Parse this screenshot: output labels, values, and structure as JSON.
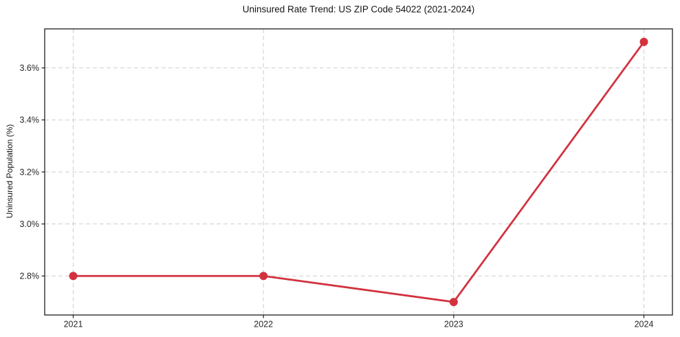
{
  "page": {
    "background": "#ffffff"
  },
  "chart_data": {
    "type": "line",
    "title": "Uninsured Rate Trend: US ZIP Code 54022 (2021-2024)",
    "xlabel": "",
    "ylabel": "Uninsured Population (%)",
    "x": [
      2021,
      2022,
      2023,
      2024
    ],
    "series": [
      {
        "name": "uninsured-rate",
        "values": [
          2.8,
          2.8,
          2.7,
          3.7
        ],
        "color": "#d2323e",
        "marker": "circle"
      }
    ],
    "xlim": [
      2020.85,
      2024.15
    ],
    "ylim": [
      2.65,
      3.75
    ],
    "xticks": [
      2021,
      2022,
      2023,
      2024
    ],
    "xtick_labels": [
      "2021",
      "2022",
      "2023",
      "2024"
    ],
    "yticks": [
      2.8,
      3.0,
      3.2,
      3.4,
      3.6
    ],
    "ytick_labels": [
      "2.8%",
      "3.0%",
      "3.2%",
      "3.4%",
      "3.6%"
    ],
    "grid": {
      "show": true,
      "style": "dashed",
      "color": "#cdcdcd"
    },
    "legend": {
      "show": false
    },
    "style": {
      "line_width": 2.8,
      "marker_radius": 6,
      "spine_color": "#1c1c1c",
      "tick_color": "#1c1c1c",
      "text_color": "#262626",
      "tick_font_size": 12.5
    }
  }
}
